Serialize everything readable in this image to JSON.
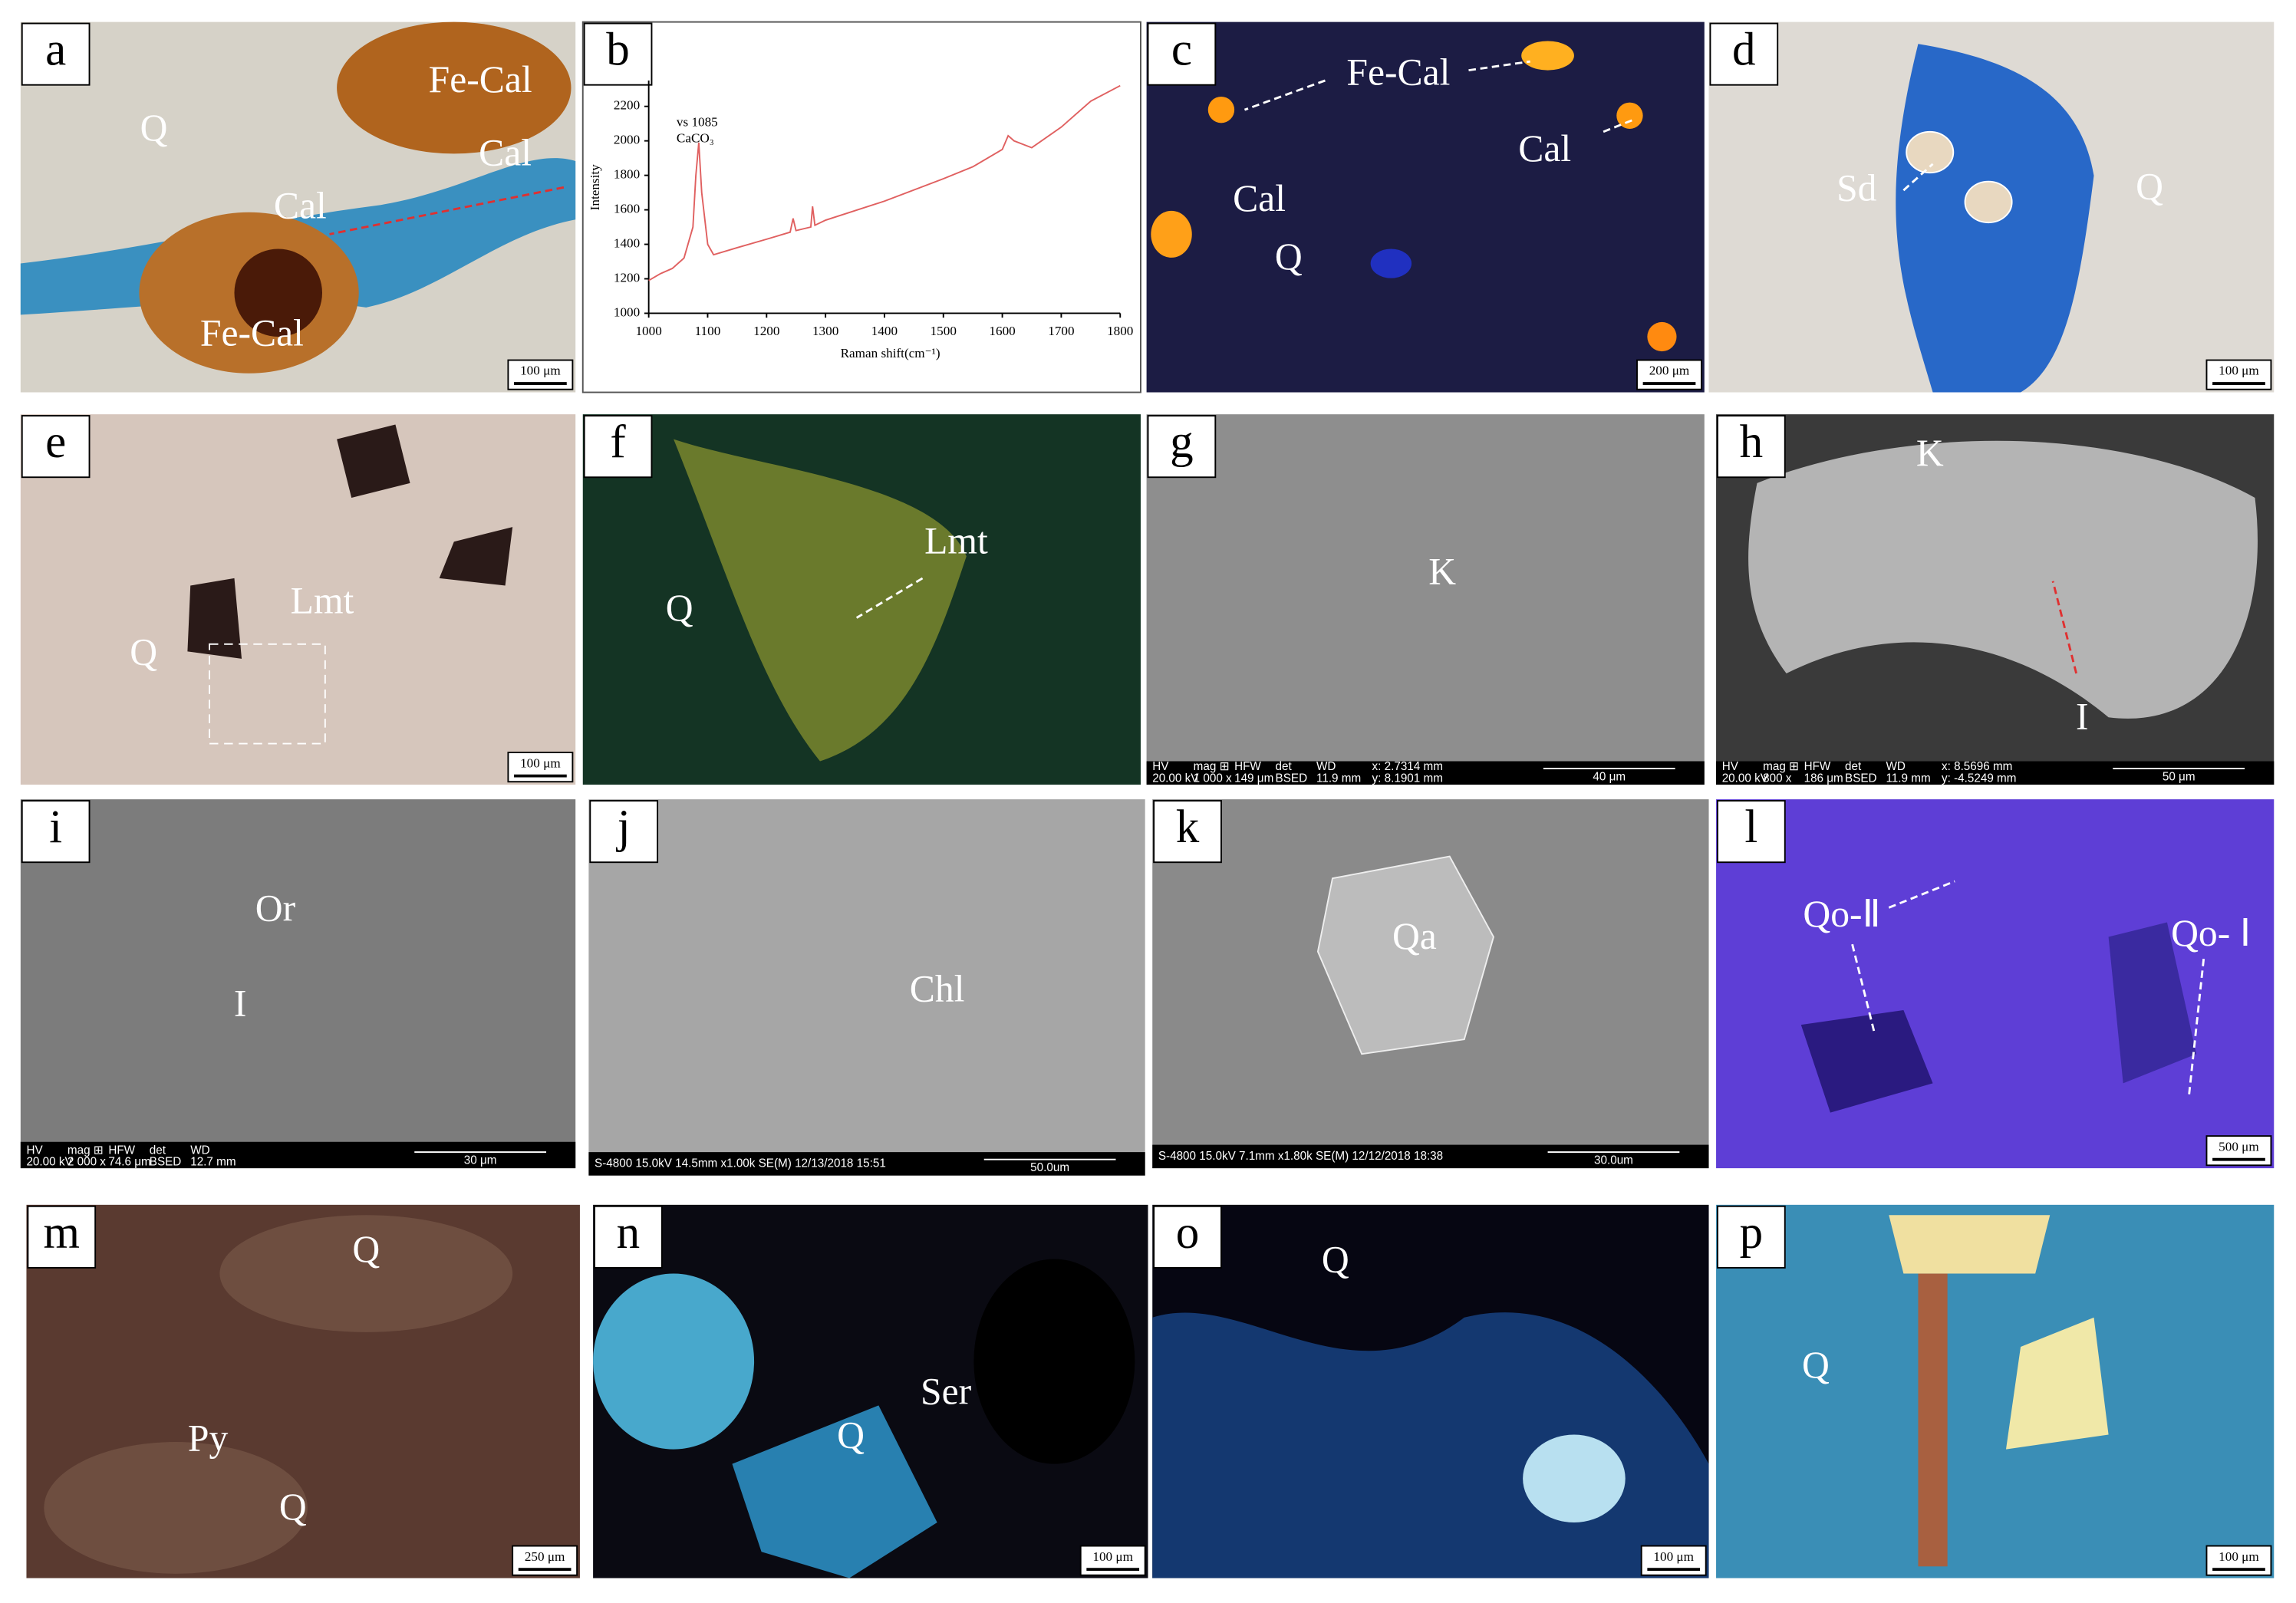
{
  "panels": [
    {
      "letter": "a",
      "labels": [
        "Q",
        "Fe-Cal",
        "Cal",
        "Cal",
        "Fe-Cal"
      ],
      "scale": "100 μm"
    },
    {
      "letter": "b"
    },
    {
      "letter": "c",
      "labels": [
        "Fe-Cal",
        "Cal",
        "Cal",
        "Q"
      ],
      "scale": "200 μm"
    },
    {
      "letter": "d",
      "labels": [
        "Sd",
        "Q"
      ],
      "scale": "100 μm"
    },
    {
      "letter": "e",
      "labels": [
        "Lmt",
        "Q"
      ],
      "scale": "100 μm"
    },
    {
      "letter": "f",
      "labels": [
        "Lmt",
        "Q"
      ]
    },
    {
      "letter": "g",
      "labels": [
        "K"
      ],
      "info": [
        [
          "HV",
          "20.00 kV"
        ],
        [
          "mag ⊞",
          "1 000 x"
        ],
        [
          "HFW",
          "149 μm"
        ],
        [
          "det",
          "BSED"
        ],
        [
          "WD",
          "11.9 mm"
        ],
        [
          "x: 2.7314 mm",
          "y: 8.1901 mm"
        ]
      ],
      "bar_scale": "40 μm"
    },
    {
      "letter": "h",
      "labels": [
        "K",
        "I"
      ],
      "info": [
        [
          "HV",
          "20.00 kV"
        ],
        [
          "mag ⊞",
          "800 x"
        ],
        [
          "HFW",
          "186 μm"
        ],
        [
          "det",
          "BSED"
        ],
        [
          "WD",
          "11.9 mm"
        ],
        [
          "x: 8.5696 mm",
          "y: -4.5249 mm"
        ]
      ],
      "bar_scale": "50 μm"
    },
    {
      "letter": "i",
      "labels": [
        "Or",
        "I"
      ],
      "info": [
        [
          "HV",
          "20.00 kV"
        ],
        [
          "mag ⊞",
          "2 000 x"
        ],
        [
          "HFW",
          "74.6 μm"
        ],
        [
          "det",
          "BSED"
        ],
        [
          "WD",
          "12.7 mm"
        ]
      ],
      "bar_scale": "30 μm"
    },
    {
      "letter": "j",
      "labels": [
        "Chl"
      ],
      "sem": "S-4800 15.0kV 14.5mm x1.00k SE(M) 12/13/2018 15:51",
      "bar_scale": "50.0um"
    },
    {
      "letter": "k",
      "labels": [
        "Qa"
      ],
      "sem": "S-4800 15.0kV 7.1mm x1.80k SE(M) 12/12/2018 18:38",
      "bar_scale": "30.0um"
    },
    {
      "letter": "l",
      "labels": [
        "Qo-Ⅱ",
        "Qo- Ⅰ"
      ],
      "scale": "500 μm"
    },
    {
      "letter": "m",
      "labels": [
        "Q",
        "Py",
        "Q"
      ],
      "scale": "250 μm"
    },
    {
      "letter": "n",
      "labels": [
        "Ser",
        "Q"
      ],
      "scale": "100 μm"
    },
    {
      "letter": "o",
      "labels": [
        "Q"
      ],
      "scale": "100 μm"
    },
    {
      "letter": "p",
      "labels": [
        "Q"
      ],
      "scale": "100 μm"
    }
  ],
  "chart_data": {
    "type": "line",
    "xlabel": "Raman shift(cm⁻¹)",
    "ylabel": "Intensity",
    "annotations": [
      "vs 1085",
      "CaCO₃"
    ],
    "color": "#e06060",
    "x": [
      1000,
      1020,
      1040,
      1060,
      1075,
      1080,
      1085,
      1090,
      1100,
      1110,
      1150,
      1200,
      1240,
      1245,
      1250,
      1275,
      1278,
      1282,
      1300,
      1400,
      1500,
      1550,
      1600,
      1610,
      1620,
      1650,
      1700,
      1750,
      1800
    ],
    "values": [
      1190,
      1230,
      1260,
      1320,
      1500,
      1800,
      1990,
      1700,
      1400,
      1340,
      1380,
      1430,
      1470,
      1550,
      1480,
      1500,
      1620,
      1510,
      1540,
      1650,
      1780,
      1850,
      1950,
      2030,
      2000,
      1960,
      2080,
      2230,
      2320
    ],
    "xlim": [
      1000,
      1800
    ],
    "ylim": [
      1000,
      2350
    ],
    "xticks": [
      1000,
      1100,
      1200,
      1300,
      1400,
      1500,
      1600,
      1700,
      1800
    ],
    "yticks": [
      1000,
      1200,
      1400,
      1600,
      1800,
      2000,
      2200
    ]
  }
}
